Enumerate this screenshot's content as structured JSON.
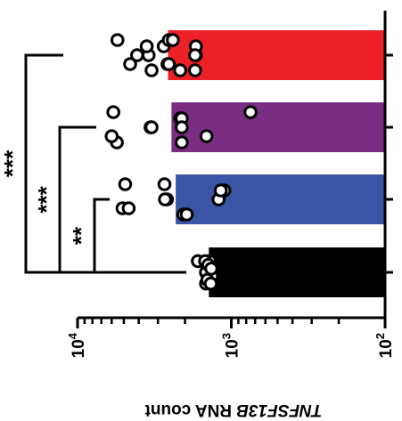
{
  "chart_data": {
    "type": "bar",
    "orientation": "horizontal",
    "x_scale": "log",
    "x_reversed": true,
    "xlim": [
      100,
      10000
    ],
    "xlabel": "TNFSF13B RNA count",
    "xlabel_italic_part": "TNFSF13B",
    "xlabel_rest": " RNA count",
    "xticks": [
      {
        "base": "10",
        "exp": "4",
        "value": 10000
      },
      {
        "base": "10",
        "exp": "3",
        "value": 1000
      },
      {
        "base": "10",
        "exp": "2",
        "value": 100
      }
    ],
    "categories": [
      "red",
      "purple",
      "blue",
      "black"
    ],
    "series": [
      {
        "color": "#ee2027",
        "bar_value": 2580,
        "points": [
          5500,
          4100,
          3300,
          2750,
          2600,
          2550,
          2150,
          1700,
          1700,
          4550,
          3450,
          2400,
          1720,
          3550,
          2550,
          1720
        ]
      },
      {
        "color": "#7b2c83",
        "bar_value": 2450,
        "points": [
          5850,
          3350,
          2100,
          2150,
          1450,
          750,
          5550,
          3300,
          2100,
          6000,
          2100
        ]
      },
      {
        "color": "#3a55a4",
        "bar_value": 2300,
        "points": [
          4900,
          2620,
          2050,
          1110,
          5100,
          2720,
          1950,
          1210,
          1170,
          4650,
          2700
        ]
      },
      {
        "color": "#000000",
        "bar_value": 1400,
        "points": [
          1650,
          1440,
          1320,
          1460,
          1330,
          1410,
          1460,
          1380,
          1440,
          1320,
          1460,
          1340,
          1430,
          1360,
          1480,
          1410,
          1350
        ]
      }
    ],
    "significance": [
      {
        "label": "**",
        "from": "blue",
        "to": "black"
      },
      {
        "label": "***",
        "from": "purple",
        "to": "black"
      },
      {
        "label": "***",
        "from": "red",
        "to": "black"
      }
    ]
  }
}
